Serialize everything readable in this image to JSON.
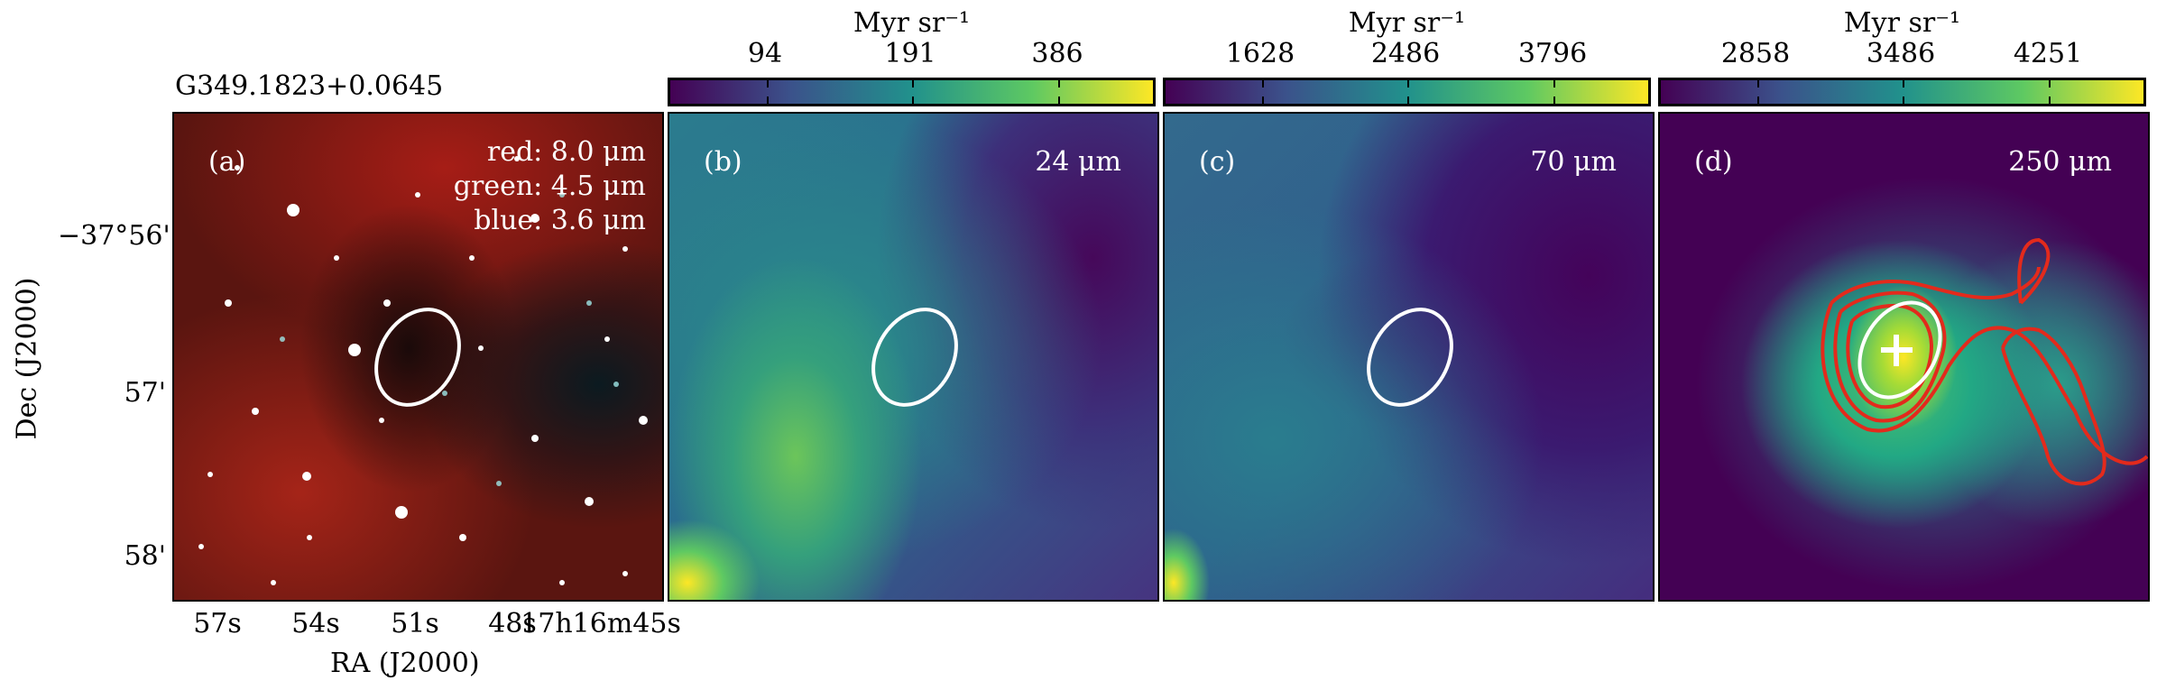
{
  "source_name": "G349.1823+0.0645",
  "axes": {
    "ylabel": "Dec (J2000)",
    "xlabel": "RA (J2000)",
    "y_ticks": [
      "−37°56'",
      "57'",
      "58'"
    ],
    "x_ticks": [
      "57s",
      "54s",
      "51s",
      "48s",
      "17h16m45s"
    ]
  },
  "panels": [
    {
      "id": "a",
      "label": "(a)",
      "legend": [
        "red: 8.0 μm",
        "green: 4.5 μm",
        "blue: 3.6 μm"
      ],
      "type": "rgb-composite"
    },
    {
      "id": "b",
      "label": "(b)",
      "wavelength": "24 μm",
      "colorbar": {
        "title": "Myr sr⁻¹",
        "ticks": [
          "94",
          "191",
          "386"
        ]
      }
    },
    {
      "id": "c",
      "label": "(c)",
      "wavelength": "70 μm",
      "colorbar": {
        "title": "Myr sr⁻¹",
        "ticks": [
          "1628",
          "2486",
          "3796"
        ]
      }
    },
    {
      "id": "d",
      "label": "(d)",
      "wavelength": "250 μm",
      "colorbar": {
        "title": "Myr sr⁻¹",
        "ticks": [
          "2858",
          "3486",
          "4251"
        ]
      }
    }
  ],
  "colors": {
    "viridis_dark": "#440154",
    "viridis_mid": "#21918c",
    "viridis_light": "#fde725",
    "contour": "#e32a1c",
    "ellipse": "#ffffff"
  }
}
